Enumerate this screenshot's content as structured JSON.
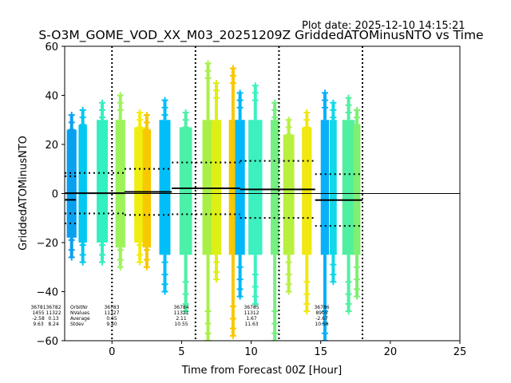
{
  "chart_data": {
    "type": "scatter",
    "plot_date": "Plot date: 2025-12-10 14:15:21",
    "title": "S-O3M_GOME_VOD_XX_M03_20251209Z GriddedATOMinusNTO vs Time",
    "xlabel": "Time from Forecast 00Z [Hour]",
    "ylabel": "GriddedATOMinusNTO",
    "xlim": [
      -3.4,
      25
    ],
    "ylim": [
      -60,
      60
    ],
    "xticks": [
      0,
      5,
      10,
      15,
      20,
      25
    ],
    "yticks": [
      -60,
      -40,
      -20,
      0,
      20,
      40,
      60
    ],
    "forecast_boundaries": [
      0,
      6,
      12,
      18
    ],
    "zero_line": 0,
    "stats_header": [
      "OrbitNr",
      "NValues",
      "Average",
      "Stdev"
    ],
    "orbits": [
      {
        "orbit": "36781",
        "nvalues": "1455",
        "average": -2.58,
        "stdev": 9.63,
        "x_start": -3.4,
        "x_end": -2.6,
        "stats_x": -3.4
      },
      {
        "orbit": "36782",
        "nvalues": "11322",
        "average": 0.13,
        "stdev": 8.24,
        "x_start": -3.4,
        "x_end": 0.9,
        "stats_x": -2.4
      },
      {
        "orbit": "36783",
        "nvalues": "11327",
        "average": 0.65,
        "stdev": 9.4,
        "x_start": 0.9,
        "x_end": 4.3,
        "stats_x": -0.6
      },
      {
        "orbit": "36784",
        "nvalues": "11321",
        "average": 2.11,
        "stdev": 10.55,
        "x_start": 4.3,
        "x_end": 9.2,
        "stats_x": 4.3
      },
      {
        "orbit": "36785",
        "nvalues": "11312",
        "average": 1.67,
        "stdev": 11.63,
        "x_start": 9.2,
        "x_end": 14.6,
        "stats_x": 9.5
      },
      {
        "orbit": "36786",
        "nvalues": "8905",
        "average": -2.67,
        "stdev": 10.56,
        "x_start": 14.6,
        "x_end": 18.0,
        "stats_x": 14.5
      }
    ],
    "strips": [
      {
        "x": -2.9,
        "w": 0.7,
        "top": 32,
        "bottom": -26,
        "color": "#0aa0f0"
      },
      {
        "x": -2.1,
        "w": 0.6,
        "top": 34,
        "bottom": -28,
        "color": "#00c8f0"
      },
      {
        "x": -0.7,
        "w": 0.8,
        "top": 37,
        "bottom": -28,
        "color": "#32f0c0"
      },
      {
        "x": 0.6,
        "w": 0.7,
        "top": 40,
        "bottom": -30,
        "color": "#9cf35a"
      },
      {
        "x": 2.0,
        "w": 0.8,
        "top": 33,
        "bottom": -28,
        "color": "#f0ee10"
      },
      {
        "x": 2.5,
        "w": 0.6,
        "top": 32,
        "bottom": -30,
        "color": "#f8c800"
      },
      {
        "x": 3.8,
        "w": 0.8,
        "top": 38,
        "bottom": -40,
        "color": "#00bff8"
      },
      {
        "x": 5.3,
        "w": 0.9,
        "top": 33,
        "bottom": -48,
        "color": "#4cf0a8"
      },
      {
        "x": 6.9,
        "w": 0.8,
        "top": 53,
        "bottom": -60,
        "color": "#a8f048"
      },
      {
        "x": 7.5,
        "w": 0.7,
        "top": 45,
        "bottom": -35,
        "color": "#dcf018"
      },
      {
        "x": 8.7,
        "w": 0.6,
        "top": 51,
        "bottom": -58,
        "color": "#f8c800"
      },
      {
        "x": 9.2,
        "w": 0.7,
        "top": 41,
        "bottom": -42,
        "color": "#00b8f8"
      },
      {
        "x": 10.3,
        "w": 1.0,
        "top": 44,
        "bottom": -45,
        "color": "#3cf0c0"
      },
      {
        "x": 11.7,
        "w": 0.6,
        "top": 37,
        "bottom": -60,
        "color": "#74f080"
      },
      {
        "x": 12.7,
        "w": 0.8,
        "top": 30,
        "bottom": -40,
        "color": "#b8f040"
      },
      {
        "x": 14.0,
        "w": 0.7,
        "top": 33,
        "bottom": -48,
        "color": "#f0e810"
      },
      {
        "x": 15.3,
        "w": 0.6,
        "top": 41,
        "bottom": -60,
        "color": "#08b0f8"
      },
      {
        "x": 15.9,
        "w": 0.5,
        "top": 37,
        "bottom": -36,
        "color": "#10d8e8"
      },
      {
        "x": 17.0,
        "w": 0.9,
        "top": 39,
        "bottom": -48,
        "color": "#50f0a0"
      },
      {
        "x": 17.6,
        "w": 0.5,
        "top": 34,
        "bottom": -42,
        "color": "#80f070"
      }
    ]
  }
}
